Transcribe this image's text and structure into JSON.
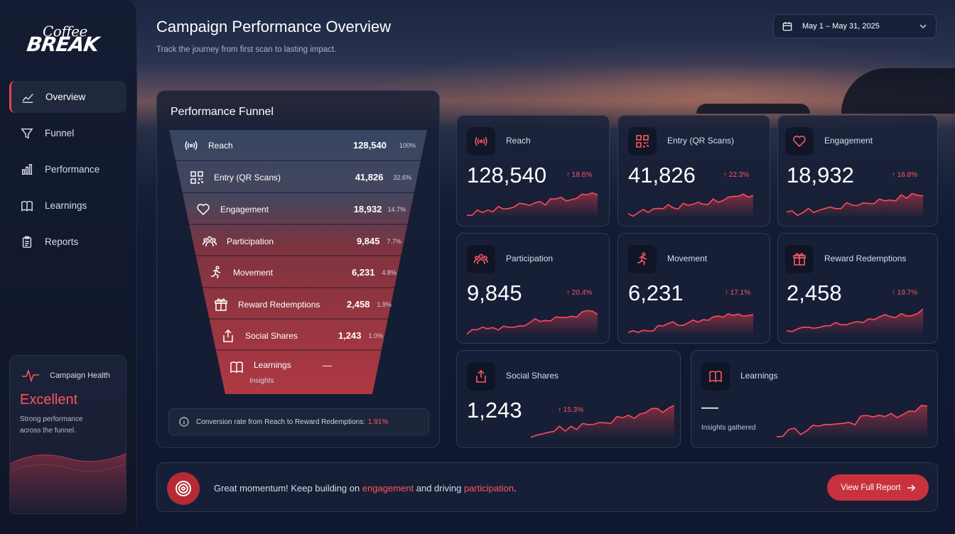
{
  "brand": {
    "logo_top": "Coffee",
    "logo_bottom": "BREAK"
  },
  "header": {
    "title": "Campaign Performance Overview",
    "subtitle": "Track the journey from first scan to lasting impact.",
    "date_range": "May 1 – May 31, 2025"
  },
  "sidebar": {
    "items": [
      {
        "label": "Overview",
        "icon": "line-chart-icon",
        "active": true
      },
      {
        "label": "Funnel",
        "icon": "funnel-icon",
        "active": false
      },
      {
        "label": "Performance",
        "icon": "bar-chart-icon",
        "active": false
      },
      {
        "label": "Learnings",
        "icon": "book-icon",
        "active": false
      },
      {
        "label": "Reports",
        "icon": "clipboard-icon",
        "active": false
      }
    ],
    "health": {
      "label": "Campaign Health",
      "status": "Excellent",
      "desc": "Strong performance across the funnel."
    }
  },
  "funnel": {
    "title": "Performance Funnel",
    "rows": [
      {
        "label": "Reach",
        "value": "128,540",
        "pct": "100%"
      },
      {
        "label": "Entry (QR Scans)",
        "value": "41,826",
        "pct": "32.6%"
      },
      {
        "label": "Engagement",
        "value": "18,932",
        "pct": "14.7%"
      },
      {
        "label": "Participation",
        "value": "9,845",
        "pct": "7.7%"
      },
      {
        "label": "Movement",
        "value": "6,231",
        "pct": "4.8%"
      },
      {
        "label": "Reward Redemptions",
        "value": "2,458",
        "pct": "1.9%"
      },
      {
        "label": "Social Shares",
        "value": "1,243",
        "pct": "1.0%"
      },
      {
        "label": "Learnings",
        "value": "—",
        "pct": "",
        "sub": "Insights"
      }
    ],
    "conversion_text": "Conversion rate from Reach to Reward Redemptions:",
    "conversion_value": "1.91%"
  },
  "kpis": [
    {
      "label": "Reach",
      "value": "128,540",
      "change": "18.6%"
    },
    {
      "label": "Entry (QR Scans)",
      "value": "41,826",
      "change": "22.3%"
    },
    {
      "label": "Engagement",
      "value": "18,932",
      "change": "16.8%"
    },
    {
      "label": "Participation",
      "value": "9,845",
      "change": "20.4%"
    },
    {
      "label": "Movement",
      "value": "6,231",
      "change": "17.1%"
    },
    {
      "label": "Reward Redemptions",
      "value": "2,458",
      "change": "19.7%"
    },
    {
      "label": "Social Shares",
      "value": "1,243",
      "change": "15.3%"
    },
    {
      "label": "Learnings",
      "value": "—",
      "note": "Insights gathered"
    }
  ],
  "footer": {
    "msg_pre": "Great momentum! Keep building on ",
    "msg_hl1": "engagement",
    "msg_mid": " and driving ",
    "msg_hl2": "participation",
    "msg_post": ".",
    "button": "View Full Report"
  },
  "colors": {
    "accent": "#ff5560",
    "button": "#c8323d"
  }
}
